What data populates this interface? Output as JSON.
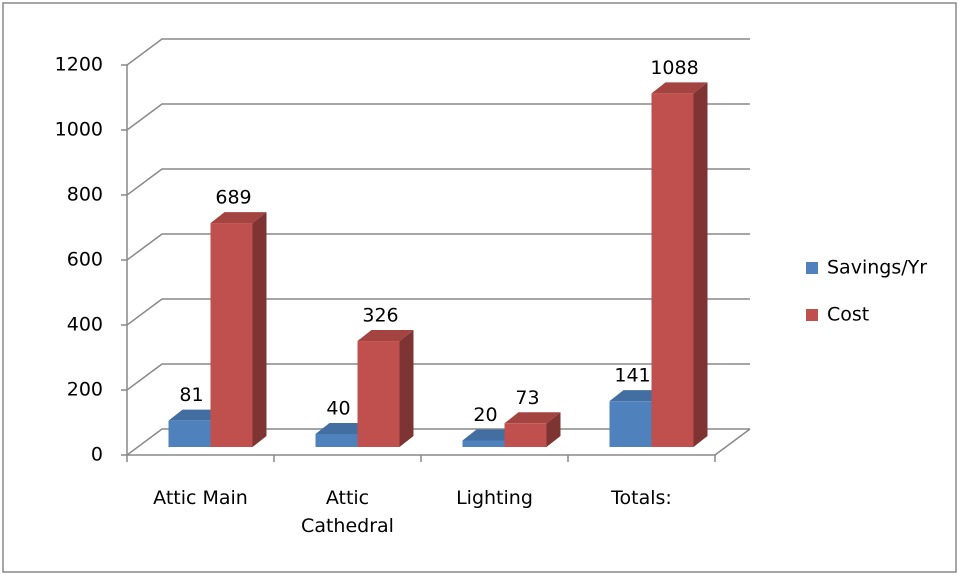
{
  "chart_data": {
    "type": "bar3d",
    "categories": [
      "Attic Main",
      "Attic Cathedral",
      "Lighting",
      "Totals:"
    ],
    "series": [
      {
        "name": "Savings/Yr",
        "color": "#4f81bd",
        "values": [
          81,
          40,
          20,
          141
        ]
      },
      {
        "name": "Cost",
        "color": "#c0504d",
        "values": [
          689,
          326,
          73,
          1088
        ]
      }
    ],
    "ylim": [
      0,
      1200
    ],
    "yticks": [
      0,
      200,
      400,
      600,
      800,
      1000,
      1200
    ],
    "grid": true,
    "legend": "right"
  }
}
